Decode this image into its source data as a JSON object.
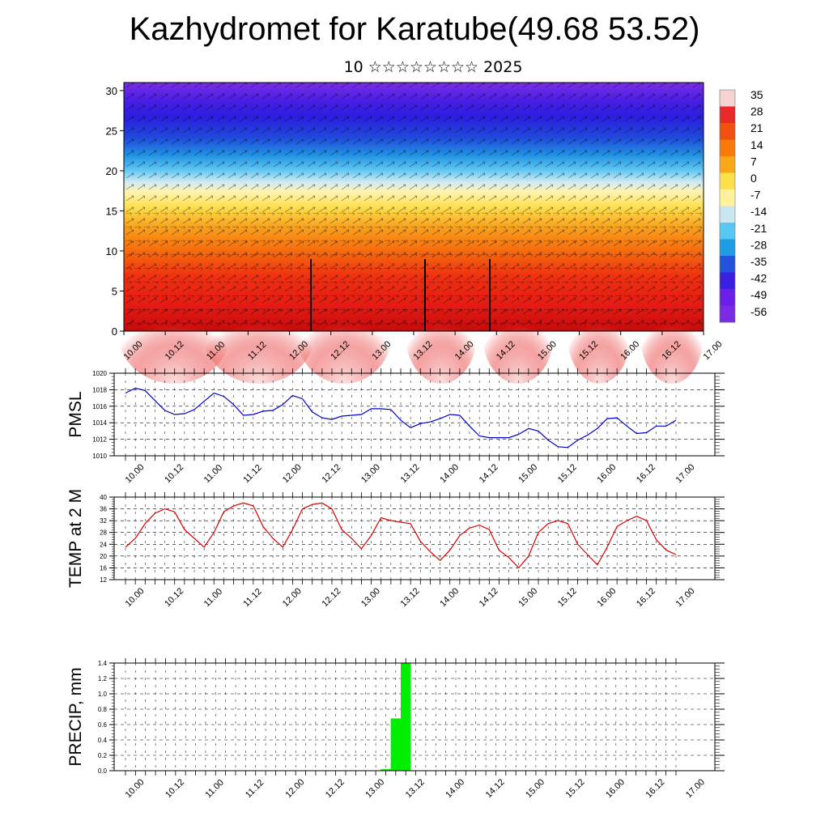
{
  "title": "Kazhydromet for Karatube(49.68 53.52)",
  "subtitle": "10 ☆☆☆☆☆☆☆☆ 2025",
  "time_labels": [
    "10.00",
    "10.12",
    "11.00",
    "11.12",
    "12.00",
    "12.12",
    "13.00",
    "13.12",
    "14.00",
    "14.12",
    "15.00",
    "15.12",
    "16.00",
    "16.12",
    "17.00"
  ],
  "colors": {
    "pmsl_line": "#0000cc",
    "temp_line": "#dd0000",
    "precip_bar": "#00ee00",
    "grid": "#000000"
  },
  "chart_data": [
    {
      "type": "heatmap",
      "name": "cross-section",
      "y_ticks": [
        0,
        5,
        10,
        15,
        20,
        25,
        30
      ],
      "ylim": [
        0,
        31
      ],
      "colorbar_labels": [
        "35",
        "28",
        "21",
        "14",
        "7",
        "0",
        "-7",
        "-14",
        "-21",
        "-28",
        "-35",
        "-42",
        "-49",
        "-56"
      ],
      "colorbar_stops": [
        "#f6d3d3",
        "#e82a2a",
        "#f05010",
        "#f77a0a",
        "#f9a81b",
        "#fde04b",
        "#fff29a",
        "#c9e7f0",
        "#57c8f4",
        "#1e9de4",
        "#2353dc",
        "#3d1fe2",
        "#6a20e6",
        "#7a2be4"
      ],
      "vector_overlay": true
    },
    {
      "type": "line",
      "name": "PMSL",
      "ylabel": "PMSL",
      "ylim": [
        1010,
        1020
      ],
      "y_ticks": [
        1010,
        1012,
        1014,
        1016,
        1018,
        1020
      ],
      "x_step_hours": 3,
      "values": [
        1017.6,
        1018.2,
        1017.9,
        1016.7,
        1015.5,
        1015.0,
        1015.1,
        1015.6,
        1016.6,
        1017.6,
        1017.2,
        1016.2,
        1014.9,
        1015.0,
        1015.4,
        1015.5,
        1016.2,
        1017.3,
        1016.9,
        1015.3,
        1014.6,
        1014.4,
        1014.8,
        1014.9,
        1015.0,
        1015.7,
        1015.7,
        1015.6,
        1014.3,
        1013.4,
        1013.9,
        1014.1,
        1014.5,
        1015.0,
        1014.9,
        1013.6,
        1012.4,
        1012.2,
        1012.2,
        1012.2,
        1012.6,
        1013.3,
        1013.0,
        1011.9,
        1011.1,
        1011.0,
        1011.9,
        1012.5,
        1013.3,
        1014.5,
        1014.6,
        1013.6,
        1012.7,
        1012.8,
        1013.6,
        1013.6,
        1014.3
      ]
    },
    {
      "type": "line",
      "name": "TEMP at 2 M",
      "ylabel": "TEMP at 2 M",
      "ylim": [
        12,
        40
      ],
      "y_ticks": [
        12,
        16,
        20,
        24,
        28,
        32,
        36,
        40
      ],
      "x_step_hours": 3,
      "values": [
        23,
        26,
        31,
        34.5,
        36,
        35,
        29,
        26,
        23,
        28,
        35,
        37,
        38,
        37,
        30,
        26,
        23,
        29,
        36,
        37.5,
        38,
        36,
        29,
        26,
        22.5,
        27,
        33,
        32,
        31.5,
        31,
        25,
        21.5,
        18.5,
        22,
        27,
        29.5,
        30.5,
        29,
        22,
        19.5,
        16,
        20,
        28,
        31,
        32,
        31,
        24,
        20.5,
        17,
        23,
        30,
        32,
        33.5,
        32,
        25.5,
        22,
        20.5
      ]
    },
    {
      "type": "bar",
      "name": "PRECIP, mm",
      "ylabel": "PRECIP, mm",
      "ylim": [
        0,
        1.4
      ],
      "y_ticks": [
        0.0,
        0.2,
        0.4,
        0.6,
        0.8,
        1.0,
        1.2,
        1.4
      ],
      "x_step_hours": 3,
      "values": [
        0,
        0,
        0,
        0,
        0,
        0,
        0,
        0,
        0,
        0,
        0,
        0,
        0,
        0,
        0,
        0,
        0,
        0,
        0,
        0,
        0,
        0,
        0,
        0,
        0,
        0,
        0.02,
        0.68,
        1.4,
        0,
        0,
        0,
        0,
        0,
        0,
        0,
        0,
        0,
        0,
        0,
        0,
        0,
        0,
        0,
        0,
        0,
        0,
        0,
        0,
        0,
        0,
        0,
        0,
        0,
        0,
        0
      ]
    }
  ]
}
